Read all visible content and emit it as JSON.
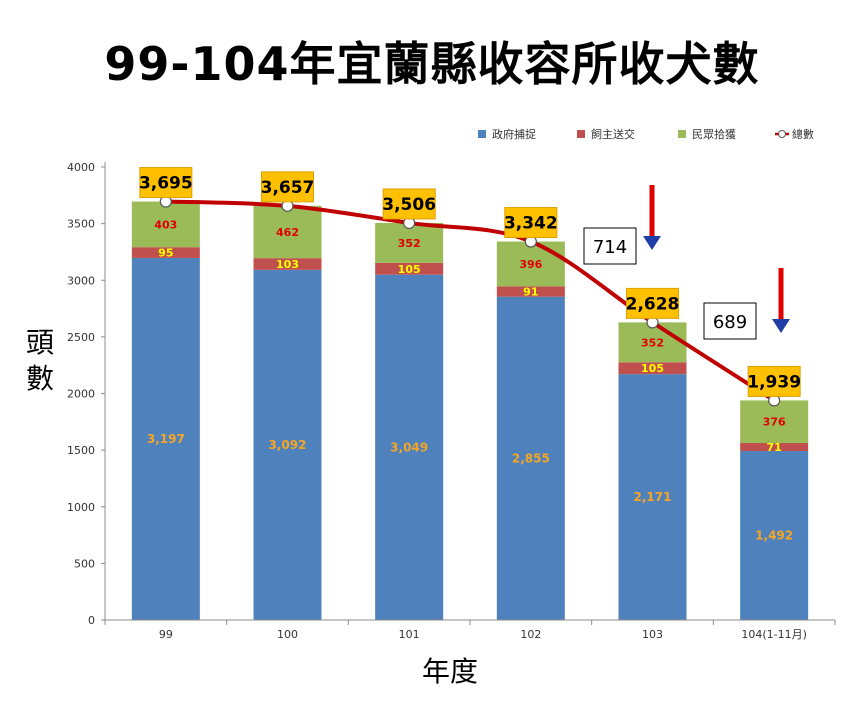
{
  "page": {
    "title": "99-104年宜蘭縣收容所收犬數",
    "ylabel": "頭數",
    "xlabel": "年度"
  },
  "colors": {
    "gov": "#4F81BD",
    "owner": "#C0504D",
    "public": "#9BBB59",
    "total_line": "#C00000",
    "callout_fill": "#FFC000",
    "segment_label_blue": "#F5A623",
    "segment_label_red": "#FFFF00",
    "segment_label_green": "#E00000",
    "arrow_body": "#E00000",
    "arrow_head": "#1F3FA6"
  },
  "chart_data": {
    "type": "bar",
    "stacked": true,
    "categories": [
      "99",
      "100",
      "101",
      "102",
      "103",
      "104(1-11月)"
    ],
    "series": [
      {
        "name": "政府捕捉",
        "values": [
          3197,
          3092,
          3049,
          2855,
          2171,
          1492
        ]
      },
      {
        "name": "飼主送交",
        "values": [
          95,
          103,
          105,
          91,
          105,
          71
        ]
      },
      {
        "name": "民眾拾獲",
        "values": [
          403,
          462,
          352,
          396,
          352,
          376
        ]
      }
    ],
    "line_series": {
      "name": "總數",
      "values": [
        3695,
        3657,
        3506,
        3342,
        2628,
        1939
      ]
    },
    "segment_labels": [
      [
        "3,197",
        "3,092",
        "3,049",
        "2,855",
        "2,171",
        "1,492"
      ],
      [
        "95",
        "103",
        "105",
        "91",
        "105",
        "71"
      ],
      [
        "403",
        "462",
        "352",
        "396",
        "352",
        "376"
      ]
    ],
    "total_labels": [
      "3,695",
      "3,657",
      "3,506",
      "3,342",
      "2,628",
      "1,939"
    ],
    "annotations": [
      {
        "text": "714",
        "after_category": "102"
      },
      {
        "text": "689",
        "after_category": "103"
      }
    ],
    "ylim": [
      0,
      4000
    ],
    "yticks": [
      0,
      500,
      1000,
      1500,
      2000,
      2500,
      3000,
      3500,
      4000
    ],
    "legend_position": "top-right",
    "grid": false
  }
}
